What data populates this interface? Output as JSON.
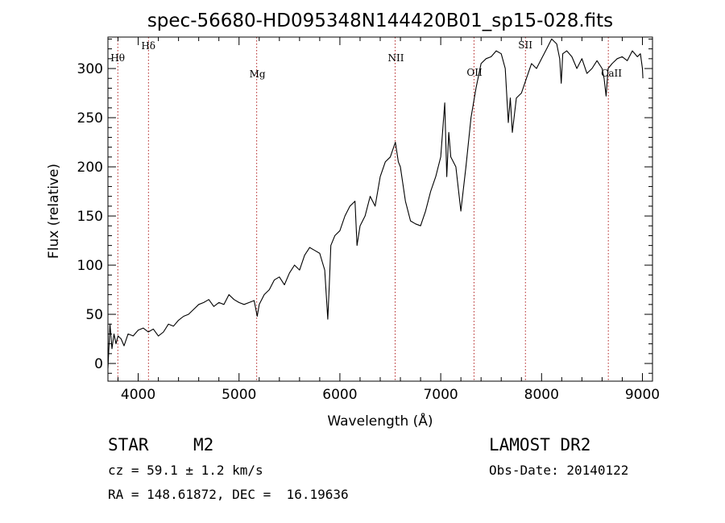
{
  "chart_data": {
    "type": "line",
    "title": "spec-56680-HD095348N144420B01_sp15-028.fits",
    "xlabel": "Wavelength (Å)",
    "ylabel": "Flux (relative)",
    "xlim": [
      3700,
      9100
    ],
    "ylim": [
      -18,
      332
    ],
    "x_ticks": [
      4000,
      5000,
      6000,
      7000,
      8000,
      9000
    ],
    "y_ticks": [
      0,
      50,
      100,
      150,
      200,
      250,
      300
    ],
    "grid": false,
    "series": [
      {
        "x": [
          3700,
          3720,
          3740,
          3760,
          3780,
          3800,
          3830,
          3860,
          3900,
          3950,
          4000,
          4050,
          4100,
          4150,
          4200,
          4250,
          4300,
          4350,
          4400,
          4450,
          4500,
          4550,
          4600,
          4650,
          4700,
          4750,
          4800,
          4850,
          4900,
          4950,
          5000,
          5050,
          5100,
          5150,
          5180,
          5200,
          5250,
          5300,
          5350,
          5400,
          5450,
          5500,
          5550,
          5600,
          5650,
          5700,
          5750,
          5800,
          5850,
          5880,
          5895,
          5910,
          5950,
          6000,
          6050,
          6100,
          6150,
          6170,
          6200,
          6250,
          6300,
          6350,
          6400,
          6450,
          6500,
          6550,
          6580,
          6600,
          6650,
          6700,
          6750,
          6800,
          6850,
          6900,
          6950,
          7000,
          7040,
          7060,
          7080,
          7100,
          7150,
          7200,
          7250,
          7300,
          7350,
          7400,
          7450,
          7500,
          7550,
          7600,
          7640,
          7670,
          7690,
          7710,
          7750,
          7800,
          7850,
          7900,
          7950,
          8000,
          8050,
          8100,
          8150,
          8180,
          8195,
          8210,
          8250,
          8300,
          8350,
          8400,
          8450,
          8500,
          8550,
          8600,
          8620,
          8640,
          8660,
          8700,
          8750,
          8800,
          8850,
          8900,
          8950,
          8980,
          9000,
          9005
        ],
        "y": [
          -5,
          40,
          15,
          30,
          20,
          28,
          25,
          18,
          30,
          28,
          34,
          36,
          32,
          35,
          28,
          32,
          40,
          38,
          44,
          48,
          50,
          55,
          60,
          62,
          65,
          58,
          62,
          60,
          70,
          65,
          62,
          60,
          62,
          64,
          48,
          60,
          70,
          75,
          85,
          88,
          80,
          92,
          100,
          95,
          110,
          118,
          115,
          112,
          95,
          45,
          80,
          120,
          130,
          135,
          150,
          160,
          165,
          120,
          140,
          150,
          170,
          160,
          190,
          205,
          210,
          225,
          205,
          200,
          165,
          145,
          142,
          140,
          155,
          175,
          190,
          210,
          265,
          190,
          235,
          210,
          200,
          155,
          200,
          250,
          280,
          305,
          310,
          312,
          318,
          315,
          300,
          245,
          270,
          235,
          270,
          275,
          290,
          305,
          300,
          310,
          320,
          330,
          325,
          310,
          285,
          315,
          318,
          312,
          300,
          310,
          295,
          300,
          308,
          300,
          290,
          272,
          300,
          305,
          310,
          312,
          308,
          318,
          312,
          315,
          300,
          290
        ]
      }
    ],
    "reference_lines": [
      {
        "label": "Hθ",
        "x": 3798
      },
      {
        "label": "Hδ",
        "x": 4102
      },
      {
        "label": "Mg",
        "x": 5175
      },
      {
        "label": "NII",
        "x": 6548
      },
      {
        "label": "OII",
        "x": 7330
      },
      {
        "label": "SII",
        "x": 7840
      },
      {
        "label": "CaII",
        "x": 8662
      }
    ]
  },
  "info": {
    "object_class": "STAR",
    "subclass": "M2",
    "survey": "LAMOST DR2",
    "cz_label": "cz = 59.1 ± 1.2 km/s",
    "obs_date": "Obs-Date: 20140122",
    "coords": "RA = 148.61872, DEC =  16.19636"
  },
  "colors": {
    "spectrum": "#000000",
    "reference_line": "#b22222",
    "axis": "#000000"
  }
}
